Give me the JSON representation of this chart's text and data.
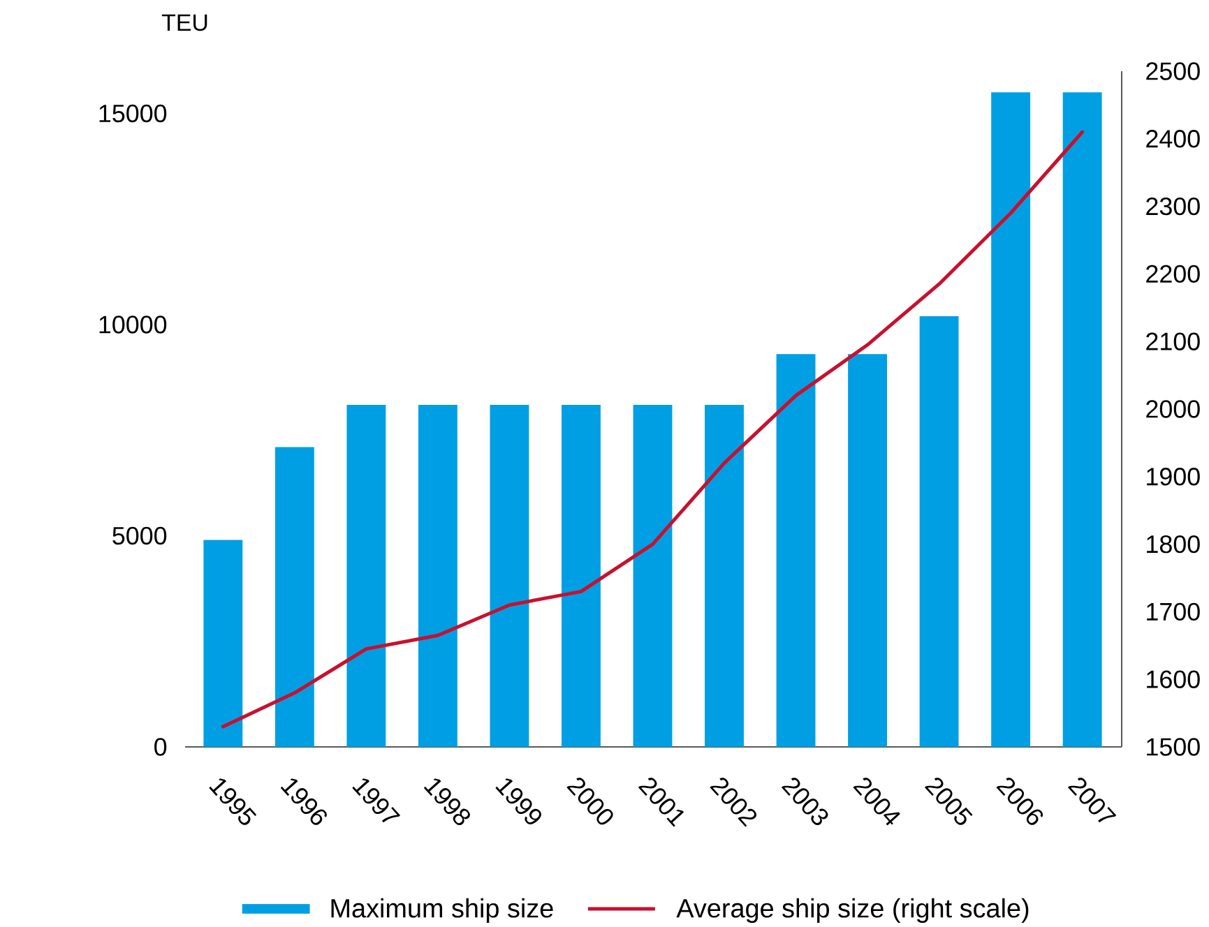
{
  "chart_data": {
    "type": "bar",
    "ylabel": "TEU",
    "categories": [
      "1995",
      "1996",
      "1997",
      "1998",
      "1999",
      "2000",
      "2001",
      "2002",
      "2003",
      "2004",
      "2005",
      "2006",
      "2007"
    ],
    "series": [
      {
        "name": "Maximum ship size",
        "color": "#009fe3",
        "values": [
          4900,
          7100,
          8100,
          8100,
          8100,
          8100,
          8100,
          8100,
          9300,
          9300,
          10200,
          15500,
          15500
        ]
      },
      {
        "name": "Average ship size (right scale)",
        "type": "line",
        "axis": "y2",
        "color": "#c8102e",
        "values": [
          1530,
          1580,
          1645,
          1665,
          1710,
          1730,
          1800,
          1920,
          2020,
          2095,
          2185,
          2290,
          2410
        ]
      }
    ],
    "ylim": [
      0,
      16000
    ],
    "yticks": [
      0,
      5000,
      10000,
      15000
    ],
    "y2lim": [
      1500,
      2500
    ],
    "y2ticks": [
      1500,
      1600,
      1700,
      1800,
      1900,
      2000,
      2100,
      2200,
      2300,
      2400,
      2500
    ],
    "legend": "bottom"
  }
}
